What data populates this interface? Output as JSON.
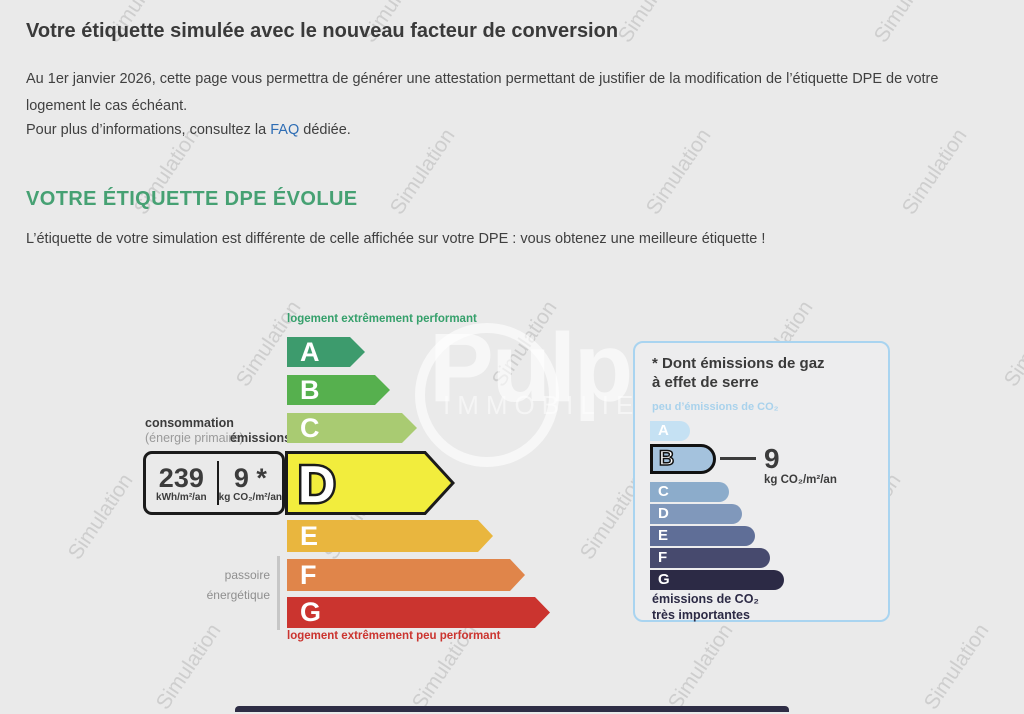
{
  "page": {
    "title": "Votre étiquette simulée avec le nouveau facteur de conversion",
    "intro": "Au 1er janvier 2026, cette page vous permettra de générer une attestation permettant de justifier de la modification de l’étiquette DPE de votre logement le cas échéant.",
    "info_prefix": "Pour plus d’informations, consultez la ",
    "faq_link": "FAQ",
    "info_suffix": " dédiée.",
    "section_heading": "VOTRE ÉTIQUETTE DPE ÉVOLUE",
    "result_text": "L’étiquette de votre simulation est différente de celle affichée sur votre DPE : vous obtenez une meilleure étiquette !"
  },
  "watermark": {
    "text": "Simulation",
    "logo_text": "Pulp",
    "logo_subtext": "IMMOBILIER"
  },
  "dpe": {
    "top_label": "logement extrêmement performant",
    "bottom_label": "logement extrêmement peu performant",
    "consumption_label": "consommation",
    "consumption_sublabel": "(énergie primaire)",
    "emissions_label": "émissions",
    "consumption_value": "239",
    "consumption_unit": "kWh/m²/an",
    "emissions_value": "9 *",
    "emissions_unit": "kg CO₂/m²/an",
    "sieve_label_1": "passoire",
    "sieve_label_2": "énergétique",
    "selected": "D",
    "classes": [
      {
        "letter": "A",
        "color": "#3d9b6d"
      },
      {
        "letter": "B",
        "color": "#56b04e"
      },
      {
        "letter": "C",
        "color": "#a9cb72"
      },
      {
        "letter": "D",
        "color": "#f2ed3d"
      },
      {
        "letter": "E",
        "color": "#e9b63e"
      },
      {
        "letter": "F",
        "color": "#e0854a"
      },
      {
        "letter": "G",
        "color": "#cb342f"
      }
    ]
  },
  "ges": {
    "title_line1": "* Dont émissions de gaz",
    "title_line2": "à effet de serre",
    "low_label": "peu d’émissions de CO₂",
    "high_label_1": "émissions de CO₂",
    "high_label_2": "très importantes",
    "value": "9",
    "unit": "kg CO₂/m²/an",
    "selected": "B",
    "classes": [
      {
        "letter": "A",
        "color": "#c5e1f3"
      },
      {
        "letter": "B",
        "color": "#a4c2dd"
      },
      {
        "letter": "C",
        "color": "#8caccb"
      },
      {
        "letter": "D",
        "color": "#8098bb"
      },
      {
        "letter": "E",
        "color": "#5f6e97"
      },
      {
        "letter": "F",
        "color": "#474a6e"
      },
      {
        "letter": "G",
        "color": "#2c2a45"
      }
    ]
  }
}
